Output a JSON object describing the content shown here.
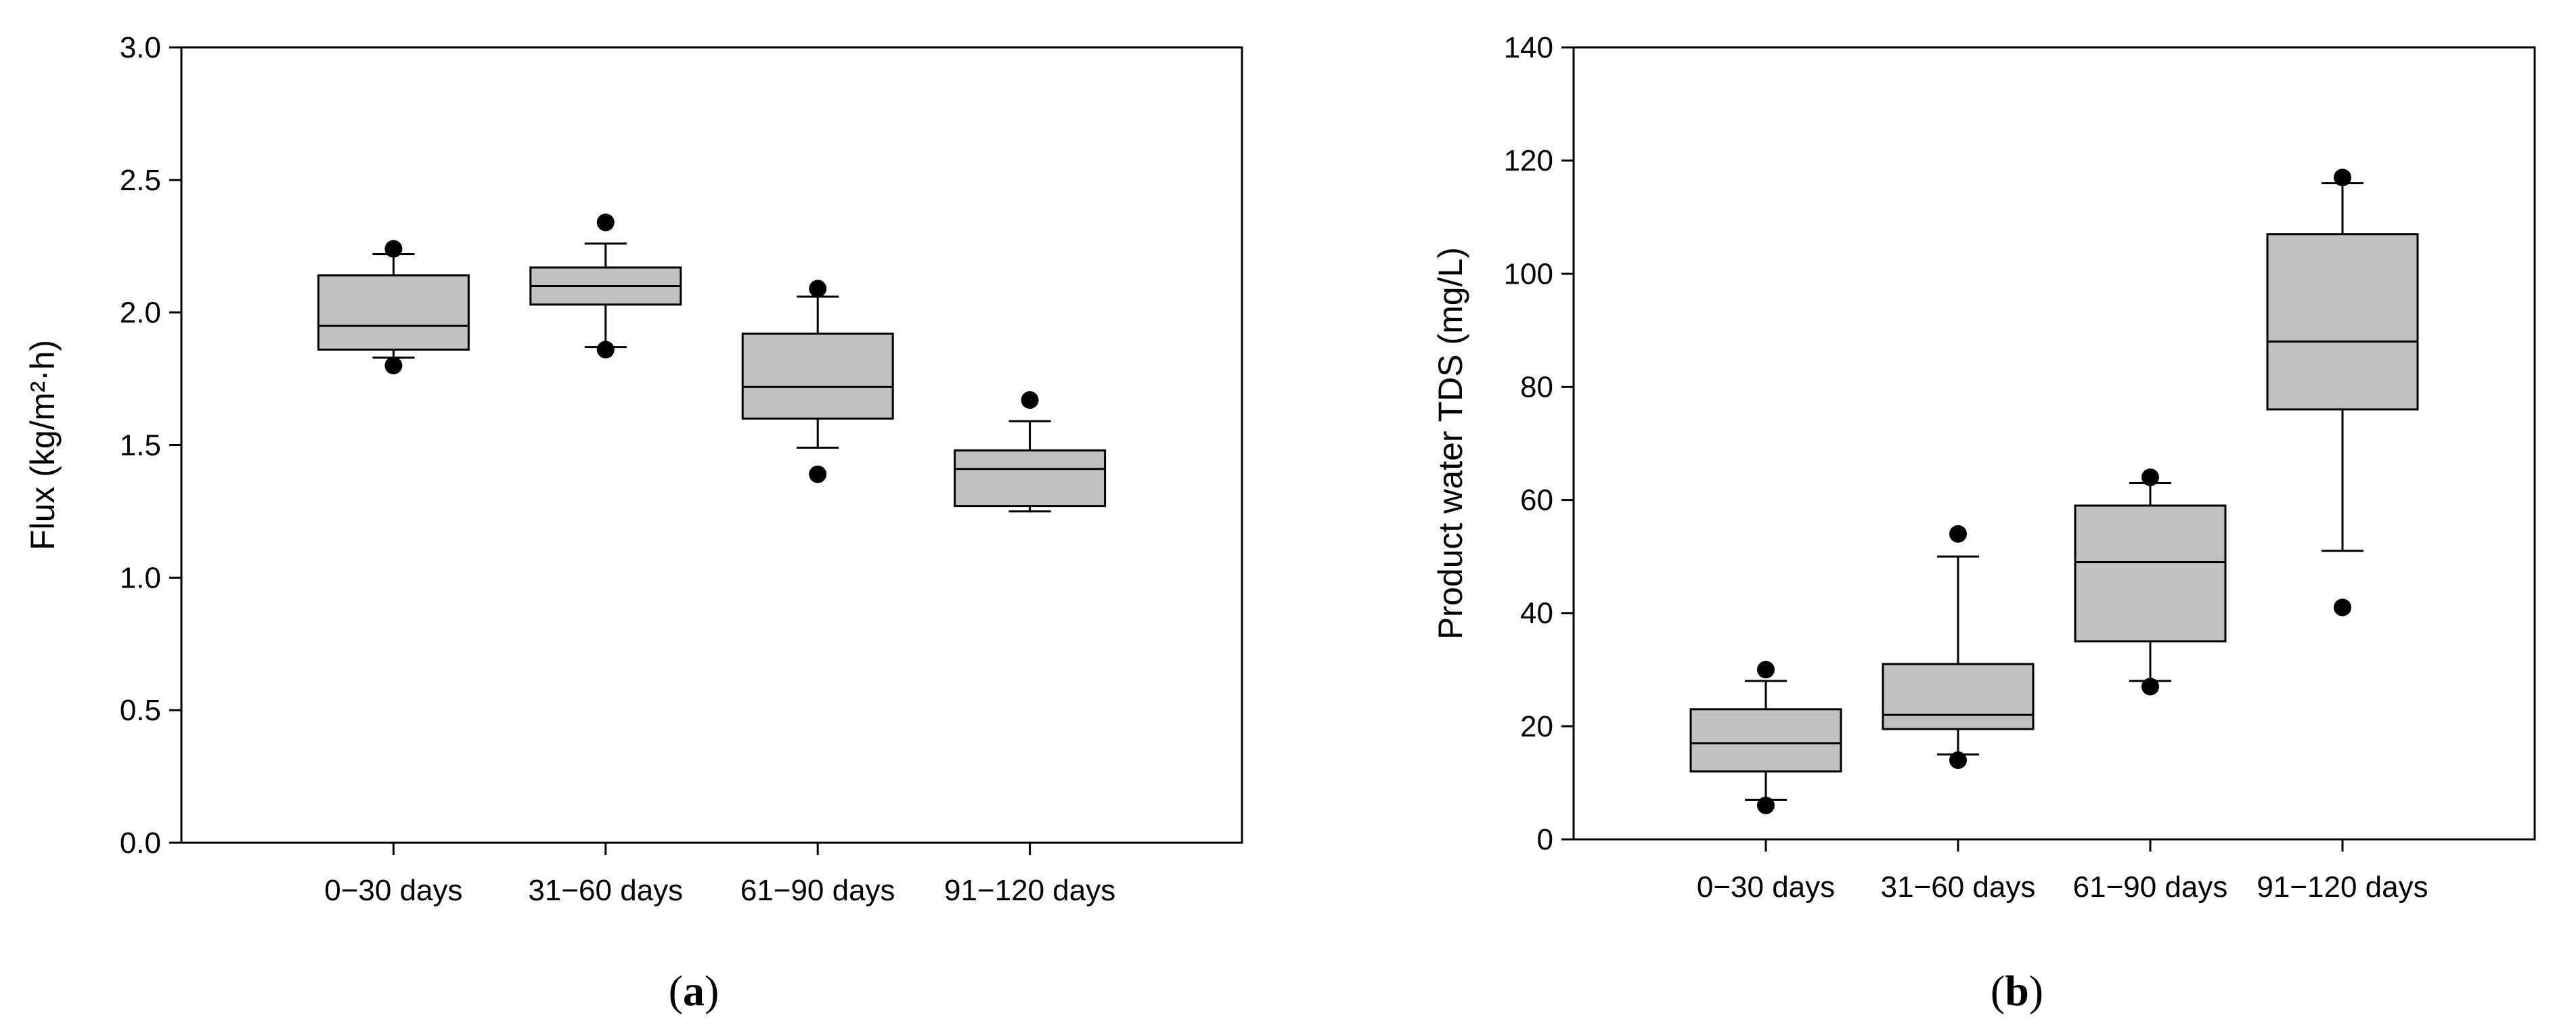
{
  "chart_data": [
    {
      "type": "box",
      "panel": "a",
      "title": "",
      "xlabel": "",
      "ylabel": "Flux (kg/m²·h)",
      "categories": [
        "0−30 days",
        "31−60 days",
        "61−90 days",
        "91−120 days"
      ],
      "ylim": [
        0,
        3.0
      ],
      "yticks": [
        "0.0",
        "0.5",
        "1.0",
        "1.5",
        "2.0",
        "2.5",
        "3.0"
      ],
      "boxes": [
        {
          "whisker_low": 1.83,
          "q1": 1.86,
          "median": 1.95,
          "q3": 2.14,
          "whisker_high": 2.22,
          "outliers": [
            1.8,
            2.24
          ]
        },
        {
          "whisker_low": 1.87,
          "q1": 2.03,
          "median": 2.1,
          "q3": 2.17,
          "whisker_high": 2.26,
          "outliers": [
            1.86,
            2.34
          ]
        },
        {
          "whisker_low": 1.49,
          "q1": 1.6,
          "median": 1.72,
          "q3": 1.92,
          "whisker_high": 2.06,
          "outliers": [
            1.39,
            2.09
          ]
        },
        {
          "whisker_low": 1.25,
          "q1": 1.27,
          "median": 1.41,
          "q3": 1.48,
          "whisker_high": 1.59,
          "outliers": [
            1.67
          ]
        }
      ],
      "grid": false
    },
    {
      "type": "box",
      "panel": "b",
      "title": "",
      "xlabel": "",
      "ylabel": "Product water TDS (mg/L)",
      "categories": [
        "0−30 days",
        "31−60 days",
        "61−90 days",
        "91−120 days"
      ],
      "ylim": [
        0,
        140
      ],
      "yticks": [
        "0",
        "20",
        "40",
        "60",
        "80",
        "100",
        "120",
        "140"
      ],
      "boxes": [
        {
          "whisker_low": 7,
          "q1": 12,
          "median": 17,
          "q3": 23,
          "whisker_high": 28,
          "outliers": [
            6,
            30
          ]
        },
        {
          "whisker_low": 15,
          "q1": 19.5,
          "median": 22,
          "q3": 31,
          "whisker_high": 50,
          "outliers": [
            14,
            54
          ]
        },
        {
          "whisker_low": 28,
          "q1": 35,
          "median": 49,
          "q3": 59,
          "whisker_high": 63,
          "outliers": [
            27,
            64
          ]
        },
        {
          "whisker_low": 51,
          "q1": 76,
          "median": 88,
          "q3": 107,
          "whisker_high": 116,
          "outliers": [
            41,
            117
          ]
        }
      ],
      "grid": false
    }
  ],
  "panel_labels": {
    "a": {
      "open": "(",
      "letter": "a",
      "close": ")"
    },
    "b": {
      "open": "(",
      "letter": "b",
      "close": ")"
    }
  },
  "colors": {
    "box_fill": "#c0c0c0",
    "stroke": "#000000",
    "outlier": "#000000"
  }
}
